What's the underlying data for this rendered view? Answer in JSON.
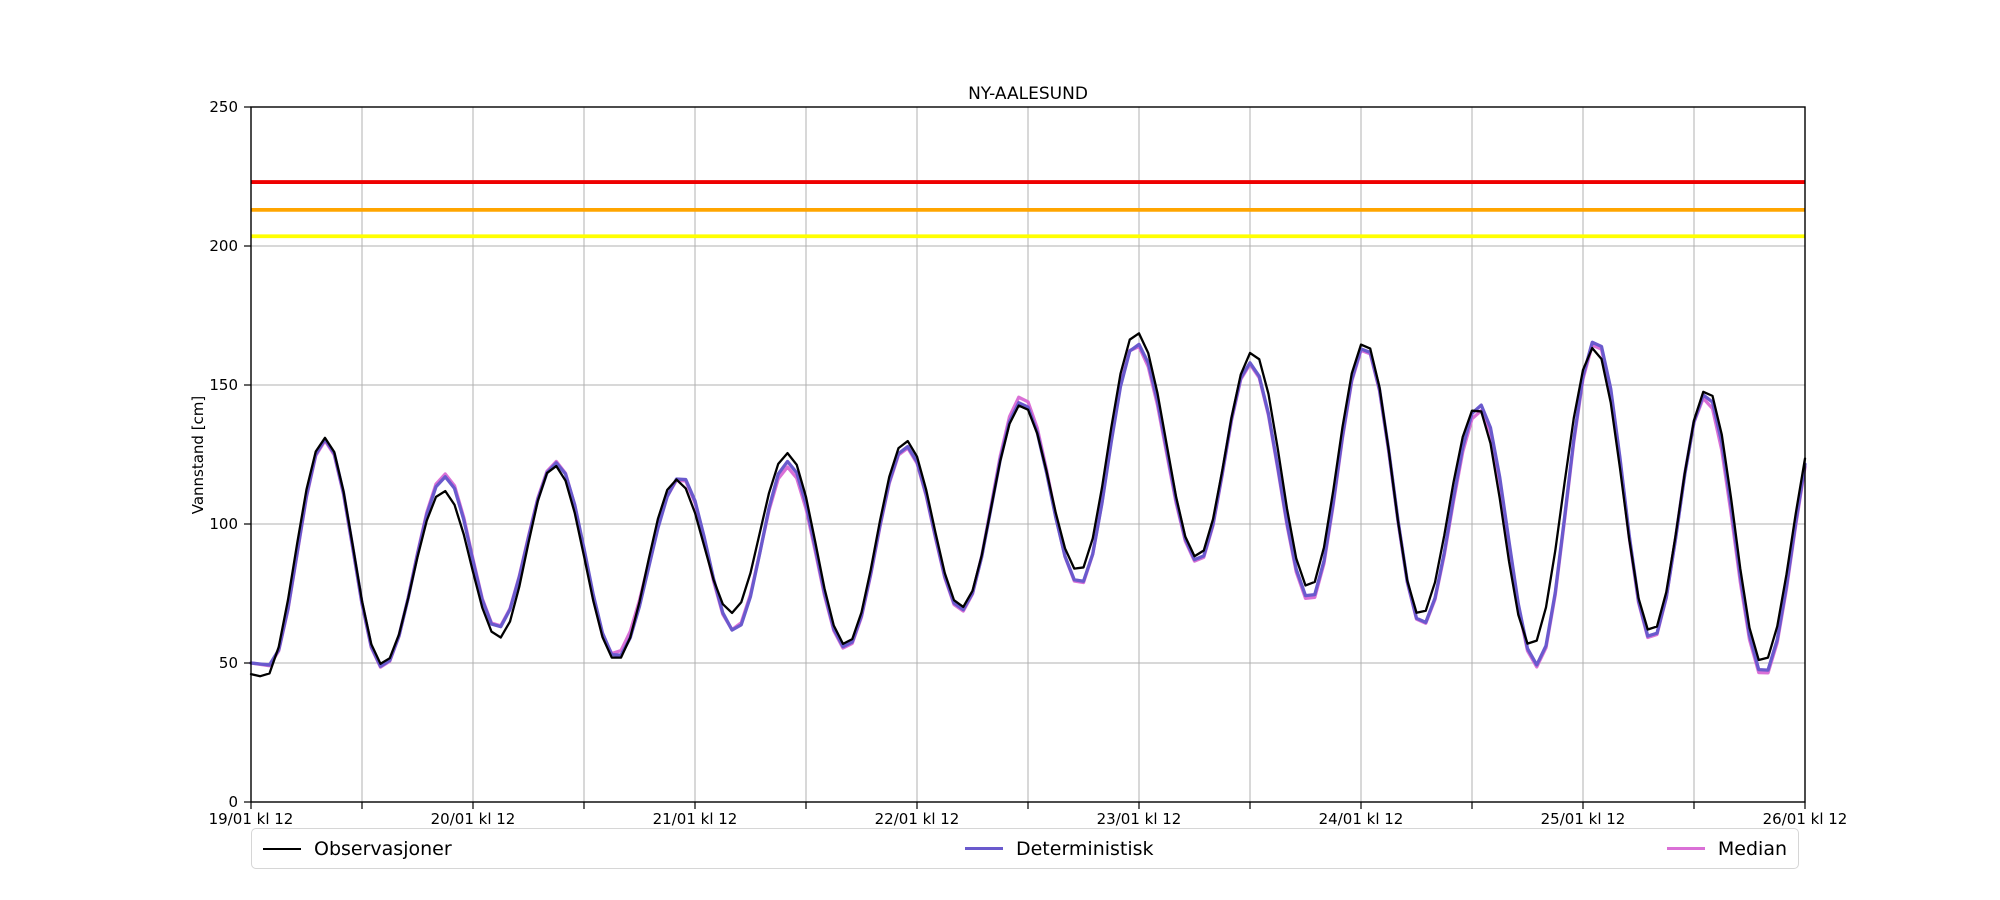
{
  "title": "NY-AALESUND",
  "ylabel": "Vannstand [cm]",
  "legend": [
    {
      "label": "Observasjoner",
      "color": "#000000",
      "line_width": 2.3
    },
    {
      "label": "Deterministisk",
      "color": "#6a5acd",
      "line_width": 3.3
    },
    {
      "label": "Median",
      "color": "#da70d6",
      "line_width": 3.3
    }
  ],
  "chart_data": {
    "type": "line",
    "title": "NY-AALESUND",
    "xlabel": "",
    "ylabel": "Vannstand [cm]",
    "ylim": [
      0,
      250
    ],
    "yticks": [
      0,
      50,
      100,
      150,
      200,
      250
    ],
    "x_axis": "time, hours after 19/01 12:00, total span 168 h (7 days)",
    "x_tick_labels": [
      "19/01 kl 12",
      "20/01 kl 12",
      "21/01 kl 12",
      "22/01 kl 12",
      "23/01 kl 12",
      "24/01 kl 12",
      "25/01 kl 12",
      "26/01 kl 12"
    ],
    "x_tick_hours": [
      0,
      24,
      48,
      72,
      96,
      120,
      144,
      168
    ],
    "minor_tick_step_hours": 12,
    "grid": true,
    "grid_color": "#b0b0b0",
    "legend_position": "bottom, outside axes, 3 columns",
    "thresholds": [
      {
        "name": "red-threshold",
        "value": 223,
        "color": "#ee0000"
      },
      {
        "name": "orange-threshold",
        "value": 213,
        "color": "#ffa500"
      },
      {
        "name": "yellow-threshold",
        "value": 203.5,
        "color": "#ffff00"
      }
    ],
    "interpolation": "cosine between listed extrema, sampled hourly",
    "series": [
      {
        "name": "Observasjoner",
        "color": "#000000",
        "width": 2.3,
        "extrema": [
          [
            0,
            46
          ],
          [
            1.5,
            45
          ],
          [
            8,
            131
          ],
          [
            14.2,
            49.5
          ],
          [
            20.8,
            112
          ],
          [
            26.8,
            59
          ],
          [
            32.8,
            121
          ],
          [
            39.5,
            51
          ],
          [
            46,
            116
          ],
          [
            52,
            68
          ],
          [
            58,
            125.5
          ],
          [
            64.3,
            56.5
          ],
          [
            70.8,
            130
          ],
          [
            76.8,
            70
          ],
          [
            83.3,
            143
          ],
          [
            89.5,
            83
          ],
          [
            95.7,
            169
          ],
          [
            102.3,
            88
          ],
          [
            108.3,
            162
          ],
          [
            114.4,
            77
          ],
          [
            120.4,
            165.5
          ],
          [
            126.4,
            67
          ],
          [
            132.5,
            142
          ],
          [
            138.4,
            56
          ],
          [
            145.2,
            163.5
          ],
          [
            151.4,
            61
          ],
          [
            157.4,
            148.5
          ],
          [
            163.4,
            50
          ],
          [
            169.8,
            140
          ]
        ]
      },
      {
        "name": "Deterministisk",
        "color": "#6a5acd",
        "width": 3.3,
        "extrema": [
          [
            0,
            50
          ],
          [
            2,
            49.3
          ],
          [
            8,
            130.5
          ],
          [
            14.2,
            48.6
          ],
          [
            21,
            117
          ],
          [
            26.6,
            62.5
          ],
          [
            33,
            122
          ],
          [
            39.5,
            52
          ],
          [
            46.5,
            117
          ],
          [
            52.3,
            61.5
          ],
          [
            58,
            122.5
          ],
          [
            64.3,
            55.5
          ],
          [
            70.8,
            128
          ],
          [
            76.8,
            69
          ],
          [
            83.3,
            144
          ],
          [
            89.6,
            78.5
          ],
          [
            95.7,
            165
          ],
          [
            102.4,
            86.5
          ],
          [
            108,
            158
          ],
          [
            114.5,
            73
          ],
          [
            120.4,
            164
          ],
          [
            126.6,
            63.8
          ],
          [
            132.8,
            143
          ],
          [
            139,
            49.3
          ],
          [
            145.4,
            166.5
          ],
          [
            151.4,
            58.5
          ],
          [
            157.3,
            147
          ],
          [
            163.5,
            46
          ],
          [
            169.8,
            139
          ]
        ]
      },
      {
        "name": "Median",
        "color": "#da70d6",
        "width": 3.3,
        "extrema": [
          [
            0,
            50
          ],
          [
            2,
            49
          ],
          [
            8,
            130
          ],
          [
            14.2,
            48.3
          ],
          [
            21,
            118
          ],
          [
            26.6,
            62.8
          ],
          [
            33,
            122.5
          ],
          [
            39.3,
            53
          ],
          [
            46.5,
            116.5
          ],
          [
            52.2,
            61.8
          ],
          [
            58,
            120.5
          ],
          [
            64.3,
            55
          ],
          [
            70.8,
            127.5
          ],
          [
            76.8,
            68.5
          ],
          [
            83.3,
            146
          ],
          [
            89.6,
            78
          ],
          [
            95.6,
            164.5
          ],
          [
            102.4,
            86
          ],
          [
            108,
            157.5
          ],
          [
            114.5,
            72
          ],
          [
            120.4,
            163.5
          ],
          [
            126.6,
            63.5
          ],
          [
            132.8,
            141
          ],
          [
            139,
            48.6
          ],
          [
            145.4,
            165.5
          ],
          [
            151.4,
            58
          ],
          [
            157.2,
            145.5
          ],
          [
            163.5,
            45
          ],
          [
            169.8,
            138
          ]
        ]
      }
    ]
  }
}
